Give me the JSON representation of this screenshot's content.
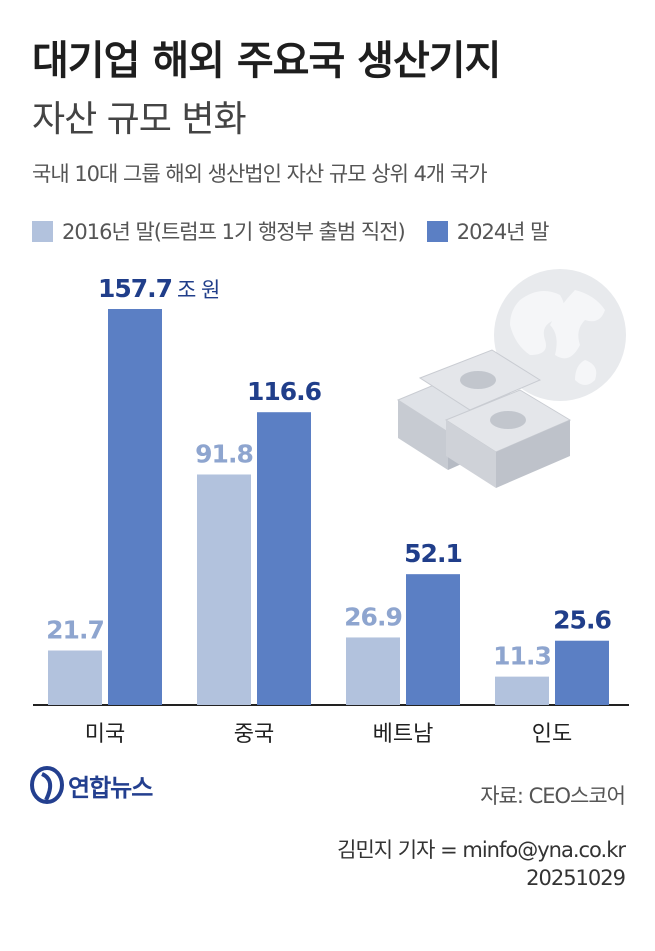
{
  "header": {
    "title": "대기업 해외 주요국 생산기지",
    "subtitle": "자산 규모 변화",
    "description": "국내 10대 그룹 해외 생산법인 자산 규모 상위 4개 국가"
  },
  "colors": {
    "series_2016": "#b2c2dd",
    "series_2024": "#5b7fc4",
    "label_2016": "#8ea5cf",
    "label_2024": "#203e8a"
  },
  "chart_data": {
    "type": "bar",
    "categories": [
      "미국",
      "중국",
      "베트남",
      "인도"
    ],
    "series": [
      {
        "name": "2016년 말(트럼프 1기 행정부 출범 직전)",
        "values": [
          21.7,
          91.8,
          26.9,
          11.3
        ],
        "labels": [
          "21.7",
          "91.8",
          "26.9",
          "11.3"
        ]
      },
      {
        "name": "2024년 말",
        "values": [
          157.7,
          116.6,
          52.1,
          25.6
        ],
        "labels": [
          "157.7",
          "116.6",
          "52.1",
          "25.6"
        ]
      }
    ],
    "unit": "조 원",
    "ylim": [
      0,
      157.7
    ],
    "grid": false,
    "legend": "top-left"
  },
  "footer": {
    "logo": "연합뉴스",
    "source": "자료: CEO스코어",
    "credit": "김민지 기자 = minfo@yna.co.kr",
    "date": "20251029"
  }
}
